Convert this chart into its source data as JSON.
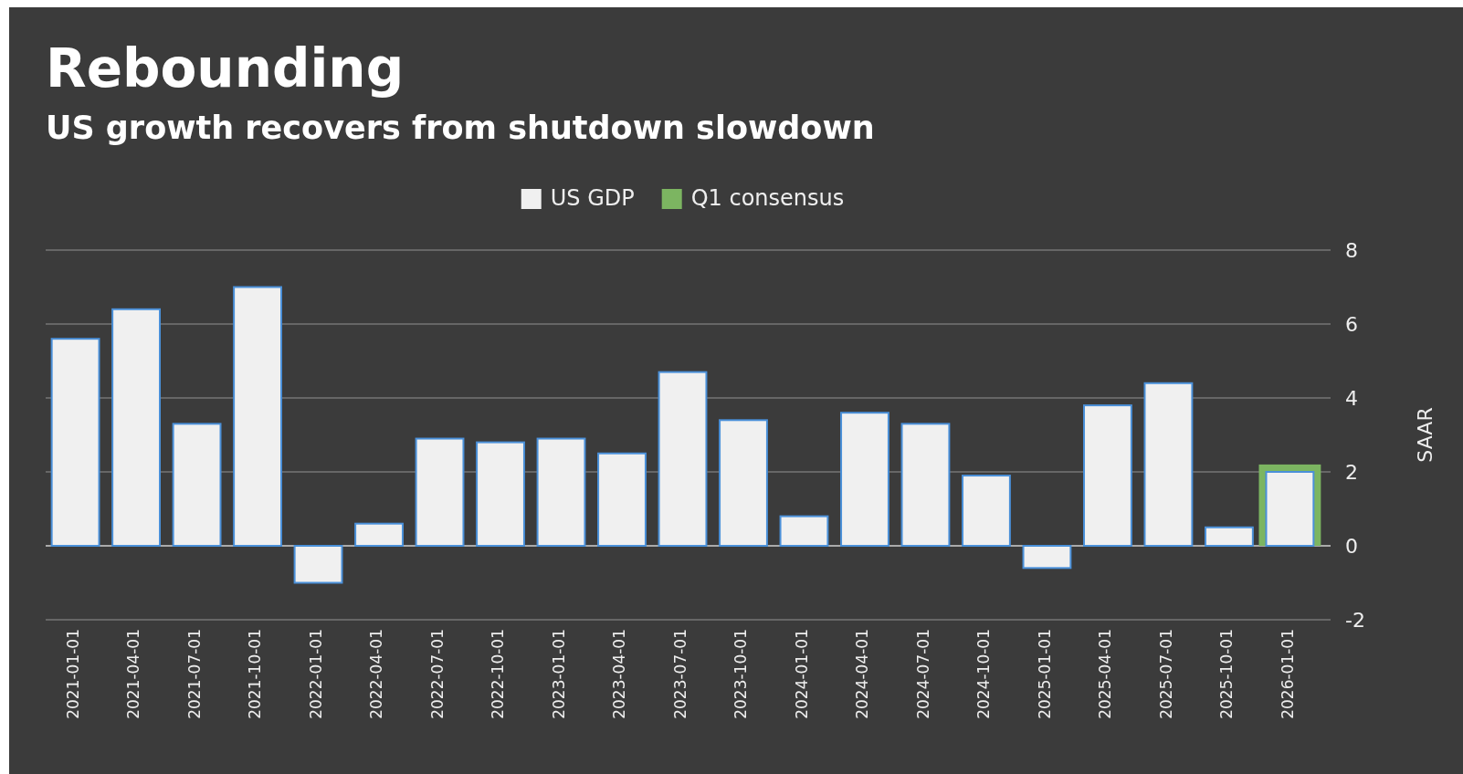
{
  "chart_data": {
    "type": "bar",
    "title": "Rebounding",
    "subtitle": "US growth recovers from shutdown slowdown",
    "ylabel": "SAAR",
    "categories": [
      "2021-01-01",
      "2021-04-01",
      "2021-07-01",
      "2021-10-01",
      "2022-01-01",
      "2022-04-01",
      "2022-07-01",
      "2022-10-01",
      "2023-01-01",
      "2023-04-01",
      "2023-07-01",
      "2023-10-01",
      "2024-01-01",
      "2024-04-01",
      "2024-07-01",
      "2024-10-01",
      "2025-01-01",
      "2025-04-01",
      "2025-07-01",
      "2025-10-01",
      "2026-01-01"
    ],
    "series": [
      {
        "name": "Q1 consensus",
        "color": "#7cb561",
        "values": [
          null,
          null,
          null,
          null,
          null,
          null,
          null,
          null,
          null,
          null,
          null,
          null,
          null,
          null,
          null,
          null,
          null,
          null,
          null,
          null,
          2.2
        ]
      },
      {
        "name": "US GDP",
        "color": "#f0f0f0",
        "values": [
          5.6,
          6.4,
          3.3,
          7.0,
          -1.0,
          0.6,
          2.9,
          2.8,
          2.9,
          2.5,
          4.7,
          3.4,
          0.8,
          3.6,
          3.3,
          1.9,
          -0.6,
          3.8,
          4.4,
          0.5,
          2.0
        ]
      }
    ],
    "ylim": [
      -2,
      8
    ],
    "yticks": [
      -2,
      0,
      2,
      4,
      6,
      8
    ],
    "grid": "y",
    "legend": "top"
  }
}
